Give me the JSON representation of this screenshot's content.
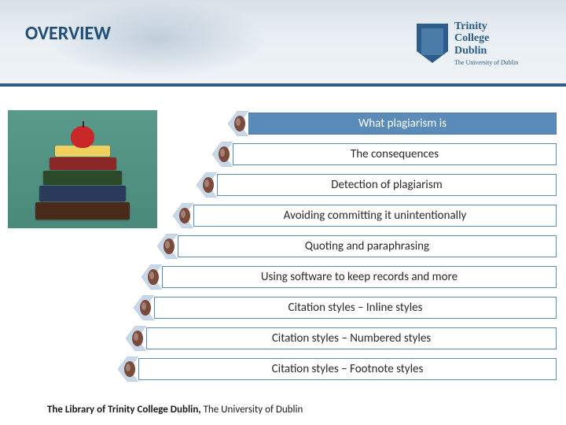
{
  "header": {
    "title": "OVERVIEW",
    "logo": {
      "line1": "Trinity",
      "line2": "College",
      "line3": "Dublin",
      "subtitle": "The University of Dublin"
    }
  },
  "items": [
    {
      "label": "What plagiarism is",
      "light": false
    },
    {
      "label": "The consequences",
      "light": true
    },
    {
      "label": "Detection of plagiarism",
      "light": true
    },
    {
      "label": "Avoiding committing it unintentionally",
      "light": true
    },
    {
      "label": "Quoting and paraphrasing",
      "light": true
    },
    {
      "label": "Using software to keep records and more",
      "light": true
    },
    {
      "label": "Citation styles – Inline styles",
      "light": true
    },
    {
      "label": "Citation styles – Numbered styles",
      "light": true
    },
    {
      "label": "Citation styles – Footnote styles",
      "light": true
    }
  ],
  "footer": {
    "bold": "The Library of Trinity College Dublin, ",
    "rest": "The University of Dublin"
  },
  "colors": {
    "primary": "#2e5c8a",
    "bar_fill": "#5b8bb8",
    "bar_light": "#ffffff",
    "chevron_outer": "#c8d8e8",
    "chevron_inner": "#7a4a3a"
  }
}
